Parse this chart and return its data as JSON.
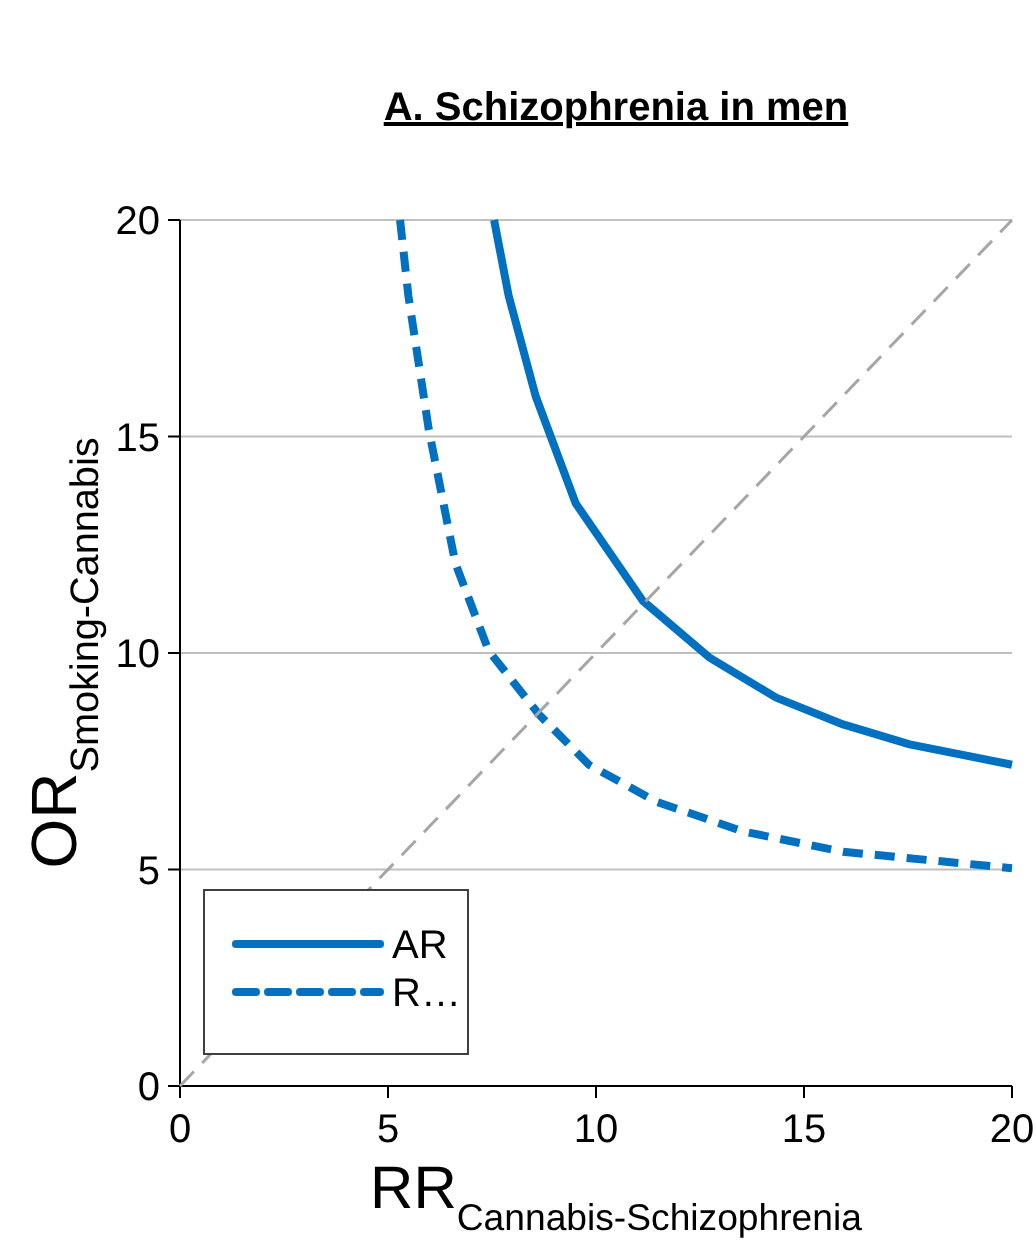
{
  "chart_data": {
    "type": "line",
    "title": "A. Schizophrenia in men",
    "xlabel": "RR$_{Cannabis-Schizophrenia}$",
    "ylabel": "OR$_{Smoking-Cannabis}$",
    "xlim": [
      0,
      20
    ],
    "xticks": [
      0,
      5,
      10,
      15,
      20
    ],
    "ylim": [
      0,
      20
    ],
    "yticks": [
      0,
      5,
      10,
      15,
      20
    ],
    "grid": "y",
    "legend": "bottom left",
    "series": [
      {
        "name": "AR",
        "color": "#0070c0",
        "line_style": "solid",
        "x": [
          7.55,
          7.9,
          8.55,
          9.51,
          11.12,
          12.72,
          14.33,
          15.94,
          17.54,
          20
        ],
        "values": [
          20,
          18.25,
          15.93,
          13.46,
          11.21,
          9.9,
          8.97,
          8.35,
          7.89,
          7.42
        ]
      },
      {
        "name": "R…",
        "color": "#0070c0",
        "line_style": "dashed",
        "x": [
          5.29,
          5.49,
          5.98,
          6.62,
          7.42,
          8.63,
          9.83,
          11.44,
          13.53,
          15.94,
          20
        ],
        "values": [
          20,
          18.25,
          15.16,
          12.07,
          10.05,
          8.58,
          7.42,
          6.57,
          5.88,
          5.41,
          5.03
        ]
      },
      {
        "color": "#a6a6a6",
        "line_style": "dashed",
        "x": [
          0,
          20
        ],
        "values": [
          0,
          20
        ]
      }
    ]
  }
}
